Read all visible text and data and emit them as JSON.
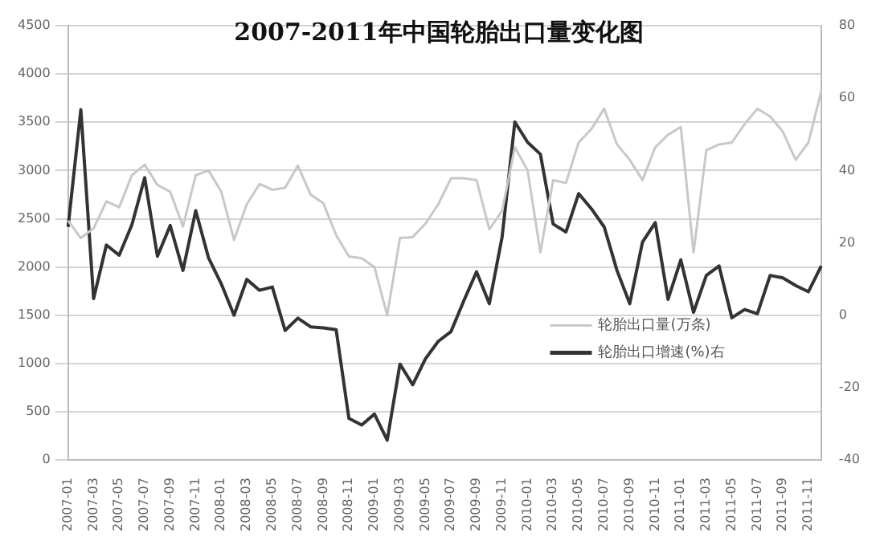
{
  "chart_data": {
    "type": "line",
    "title": "2007-2011年中国轮胎出口量变化图",
    "categories": [
      "2007-01",
      null,
      "2007-03",
      null,
      "2007-05",
      null,
      "2007-07",
      null,
      "2007-09",
      null,
      "2007-11",
      null,
      "2008-01",
      null,
      "2008-03",
      null,
      "2008-05",
      null,
      "2008-07",
      null,
      "2008-09",
      null,
      "2008-11",
      null,
      "2009-01",
      null,
      "2009-03",
      null,
      "2009-05",
      null,
      "2009-07",
      null,
      "2009-09",
      null,
      "2009-11",
      null,
      "2010-01",
      null,
      "2010-03",
      null,
      "2010-05",
      null,
      "2010-07",
      null,
      "2010-09",
      null,
      "2010-11",
      null,
      "2011-01",
      null,
      "2011-03",
      null,
      "2011-05",
      null,
      "2011-07",
      null,
      "2011-09",
      null,
      "2011-11",
      null
    ],
    "series": [
      {
        "name": "轮胎出口量(万条)",
        "color": "#c8c8c8",
        "values": [
          2480,
          2300,
          2400,
          2680,
          2620,
          2950,
          3060,
          2850,
          2780,
          2420,
          2950,
          3000,
          2780,
          2280,
          2650,
          2860,
          2800,
          2820,
          3050,
          2750,
          2660,
          2330,
          2110,
          2090,
          2000,
          1500,
          2300,
          2310,
          2450,
          2650,
          2920,
          2920,
          2900,
          2390,
          2580,
          3240,
          3000,
          2150,
          2900,
          2870,
          3290,
          3430,
          3640,
          3270,
          3110,
          2900,
          3240,
          3370,
          3450,
          2150,
          3210,
          3270,
          3290,
          3480,
          3640,
          3560,
          3400,
          3110,
          3290,
          3820
        ]
      },
      {
        "name": "轮胎出口增速(%)右",
        "color": "#333333",
        "axis": "y2",
        "values": [
          24.4,
          56.8,
          4.6,
          19.4,
          16.6,
          25,
          38,
          16.3,
          24.8,
          12.4,
          28.9,
          15.9,
          8.7,
          0,
          9.9,
          6.9,
          7.8,
          -4.2,
          -0.8,
          -3.2,
          -3.5,
          -4,
          -28.5,
          -30.3,
          -27.3,
          -34.5,
          -13.5,
          -19.2,
          -12,
          -7.2,
          -4.5,
          4,
          12,
          3.2,
          21.6,
          53.4,
          47.8,
          44.5,
          25.2,
          23,
          33.6,
          29.4,
          24.4,
          12.4,
          3.2,
          20.2,
          25.6,
          4.4,
          15.3,
          0.8,
          11,
          13.6,
          -0.7,
          1.6,
          0.4,
          11,
          10.3,
          8.2,
          6.5,
          13.6
        ]
      }
    ],
    "ylim": [
      0,
      4500
    ],
    "yticks": [
      0,
      500,
      1000,
      1500,
      2000,
      2500,
      3000,
      3500,
      4000,
      4500
    ],
    "y2lim": [
      -40,
      80
    ],
    "y2ticks": [
      -40,
      -20,
      0,
      20,
      40,
      60,
      80
    ],
    "grid": "y",
    "legend": "right",
    "marker": "none",
    "line_style": "solid"
  }
}
